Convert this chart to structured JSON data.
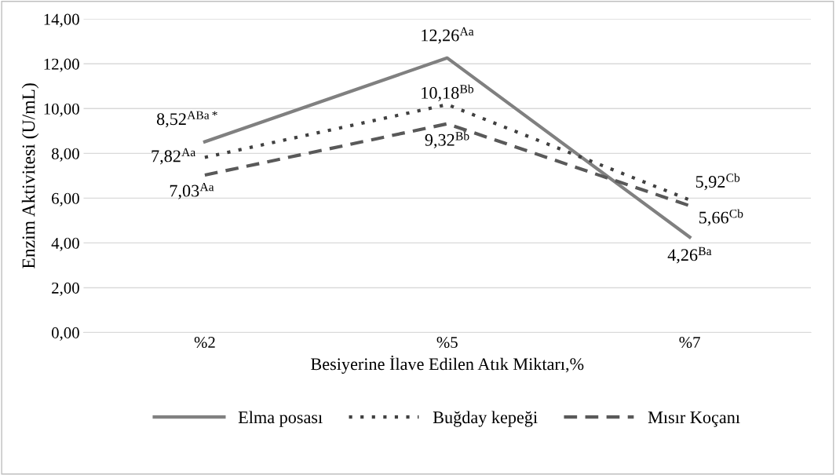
{
  "chart_data": {
    "type": "line",
    "xlabel": "Besiyerine İlave Edilen Atık Miktarı,%",
    "ylabel": "Enzim Aktivitesi (U/mL)",
    "categories": [
      "%2",
      "%5",
      "%7"
    ],
    "series": [
      {
        "name": "Elma posası",
        "color": "#808080",
        "line_style": "solid",
        "values": [
          8.52,
          12.26,
          4.26
        ],
        "value_labels": [
          "8,52$^{ABa*}$",
          "12,26$^{Aa}$",
          "4,26$^{Ba}$"
        ]
      },
      {
        "name": "Buğday kepeği",
        "color": "#404040",
        "line_style": "dotted",
        "values": [
          7.82,
          10.18,
          5.92
        ],
        "value_labels": [
          "7,82$^{Aa}$",
          "10,18$^{Bb}$",
          "5,92$^{Cb}$"
        ]
      },
      {
        "name": "Mısır Koçanı",
        "color": "#595959",
        "line_style": "dashed",
        "values": [
          7.03,
          9.32,
          5.66
        ],
        "value_labels": [
          "7,03$^{Aa}$",
          "9,32$^{Bb}$",
          "5,66$^{Cb}$"
        ]
      }
    ],
    "ylim": [
      0,
      14
    ],
    "yticks": [
      {
        "value": 0,
        "label": "0,00"
      },
      {
        "value": 2,
        "label": "2,00"
      },
      {
        "value": 4,
        "label": "4,00"
      },
      {
        "value": 6,
        "label": "6,00"
      },
      {
        "value": 8,
        "label": "8,00"
      },
      {
        "value": 10,
        "label": "10,00"
      },
      {
        "value": 12,
        "label": "12,00"
      },
      {
        "value": 14,
        "label": "14,00"
      }
    ],
    "grid": "y",
    "legend": "bottom",
    "marker": "none"
  }
}
